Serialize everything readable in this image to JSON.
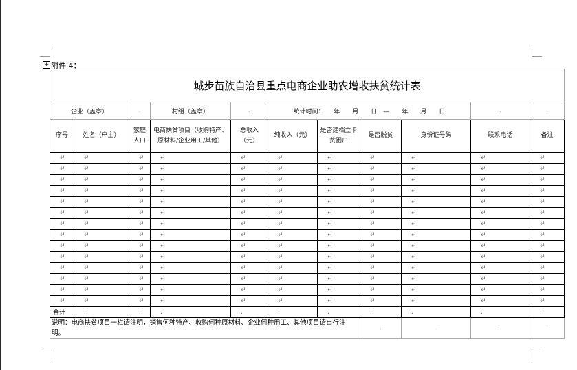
{
  "attachment_label": "附件 4：",
  "title": "城步苗族自治县重点电商企业助农增收扶贫统计表",
  "info_row": {
    "company": "企业（盖章）",
    "village": "村组（盖章）",
    "period": "统计时间：　　年　　月　　日　—　　年　　月　　日"
  },
  "headers": [
    "序号",
    "姓名（户主）",
    "家庭人口",
    "电商扶贫项目（收购特产、原材料/企业用工/其他）",
    "总收入（元）",
    "纯收入（元）",
    "是否建档立卡贫困户",
    "是否脱贫",
    "身份证号码",
    "联系电话",
    "备注"
  ],
  "data_row_count": 14,
  "row_marker": "↵",
  "total_label": "合计",
  "note": "说明：电商扶贫项目一栏请注明，销售何种特产、收购何种原材料、企业何种用工、其他项目请自行注明。"
}
